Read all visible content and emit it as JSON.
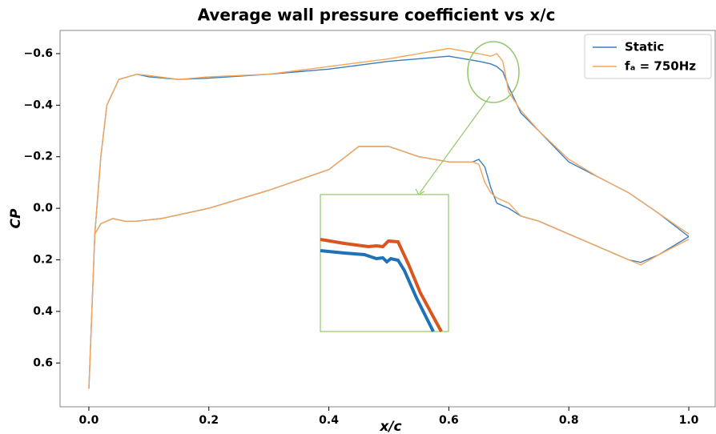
{
  "chart_data": {
    "type": "line",
    "title": "Average wall pressure coefficient vs x/c",
    "xlabel": "x/c",
    "ylabel": "CP",
    "x": [
      1.0,
      0.95,
      0.9,
      0.85,
      0.8,
      0.75,
      0.72,
      0.7,
      0.69,
      0.68,
      0.67,
      0.65,
      0.6,
      0.5,
      0.4,
      0.3,
      0.2,
      0.15,
      0.1,
      0.08,
      0.05,
      0.03,
      0.02,
      0.01,
      0.005,
      0.0,
      0.005,
      0.01,
      0.02,
      0.04,
      0.06,
      0.08,
      0.12,
      0.2,
      0.3,
      0.4,
      0.45,
      0.5,
      0.55,
      0.6,
      0.64,
      0.65,
      0.66,
      0.67,
      0.68,
      0.7,
      0.72,
      0.75,
      0.8,
      0.85,
      0.9,
      0.92,
      0.95,
      1.0
    ],
    "series": [
      {
        "name": "Static",
        "color": "#3a7dbf",
        "values": [
          0.11,
          0.02,
          -0.06,
          -0.12,
          -0.18,
          -0.3,
          -0.37,
          -0.47,
          -0.53,
          -0.55,
          -0.56,
          -0.57,
          -0.59,
          -0.57,
          -0.54,
          -0.52,
          -0.505,
          -0.5,
          -0.51,
          -0.52,
          -0.5,
          -0.4,
          -0.2,
          0.1,
          0.4,
          0.7,
          0.4,
          0.1,
          0.06,
          0.04,
          0.05,
          0.05,
          0.04,
          0.0,
          -0.07,
          -0.15,
          -0.24,
          -0.24,
          -0.2,
          -0.18,
          -0.18,
          -0.19,
          -0.16,
          -0.08,
          -0.02,
          0.0,
          0.03,
          0.05,
          0.1,
          0.15,
          0.2,
          0.21,
          0.18,
          0.11
        ]
      },
      {
        "name": "fₐ = 750Hz",
        "color": "#f5a55a",
        "values": [
          0.1,
          0.02,
          -0.06,
          -0.12,
          -0.19,
          -0.3,
          -0.38,
          -0.45,
          -0.57,
          -0.6,
          -0.59,
          -0.6,
          -0.62,
          -0.58,
          -0.55,
          -0.52,
          -0.51,
          -0.5,
          -0.515,
          -0.52,
          -0.5,
          -0.4,
          -0.2,
          0.1,
          0.4,
          0.7,
          0.4,
          0.1,
          0.06,
          0.04,
          0.05,
          0.05,
          0.04,
          0.0,
          -0.07,
          -0.15,
          -0.24,
          -0.24,
          -0.2,
          -0.18,
          -0.18,
          -0.17,
          -0.1,
          -0.06,
          -0.04,
          -0.02,
          0.03,
          0.05,
          0.1,
          0.15,
          0.2,
          0.22,
          0.18,
          0.12
        ]
      }
    ],
    "xlim": [
      -0.048,
      1.044
    ],
    "ylim": [
      0.77,
      -0.69
    ],
    "xticks": [
      {
        "value": 0,
        "label": "0.0"
      },
      0.2,
      0.4,
      0.6,
      0.8,
      {
        "value": 1,
        "label": "1.0"
      }
    ],
    "yticks": [
      {
        "value": -0.6,
        "label": "−0.6"
      },
      {
        "value": -0.4,
        "label": "−0.4"
      },
      {
        "value": -0.2,
        "label": "−0.2"
      },
      {
        "value": 0,
        "label": "0.0"
      },
      0.2,
      0.4,
      0.6
    ],
    "legend": "upper right"
  }
}
